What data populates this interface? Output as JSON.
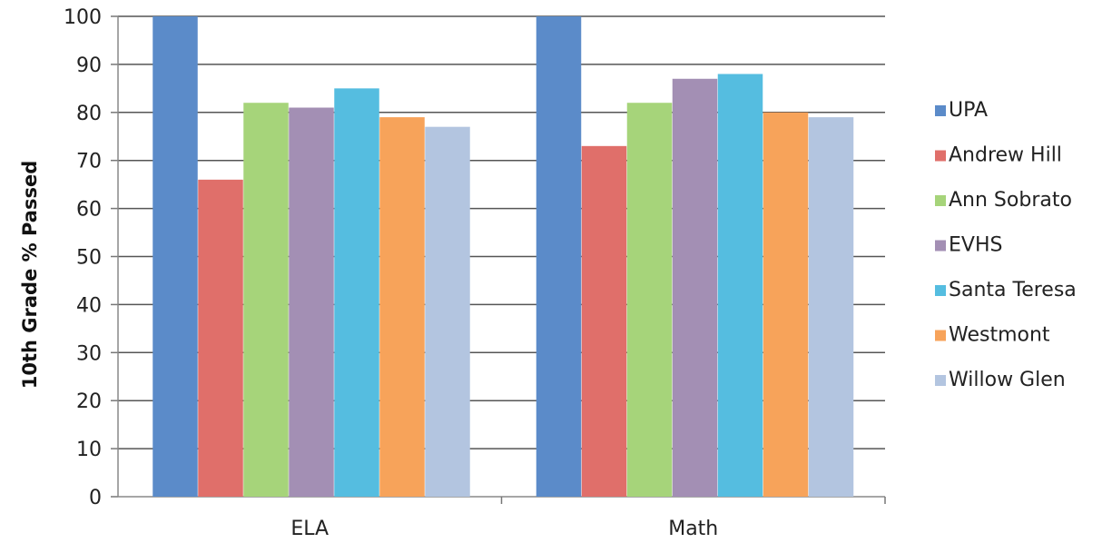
{
  "chart_data": {
    "type": "bar",
    "categories": [
      "ELA",
      "Math"
    ],
    "series": [
      {
        "name": "UPA",
        "values": [
          100,
          100
        ],
        "color": "#5b8bc9"
      },
      {
        "name": "Andrew Hill",
        "values": [
          66,
          73
        ],
        "color": "#e06f6a"
      },
      {
        "name": "Ann Sobrato",
        "values": [
          82,
          82
        ],
        "color": "#a6d47a"
      },
      {
        "name": "EVHS",
        "values": [
          81,
          87
        ],
        "color": "#a38fb4"
      },
      {
        "name": "Santa Teresa",
        "values": [
          85,
          88
        ],
        "color": "#55bde0"
      },
      {
        "name": "Westmont",
        "values": [
          79,
          80
        ],
        "color": "#f7a35a"
      },
      {
        "name": "Willow Glen",
        "values": [
          77,
          79
        ],
        "color": "#b3c5e0"
      }
    ],
    "ylabel": "10th Grade % Passed",
    "xlabel": "",
    "ylim": [
      0,
      100
    ],
    "yticks": [
      "0",
      "10",
      "20",
      "30",
      "40",
      "50",
      "60",
      "70",
      "80",
      "90",
      "100"
    ],
    "grid": true,
    "legend_position": "right"
  }
}
